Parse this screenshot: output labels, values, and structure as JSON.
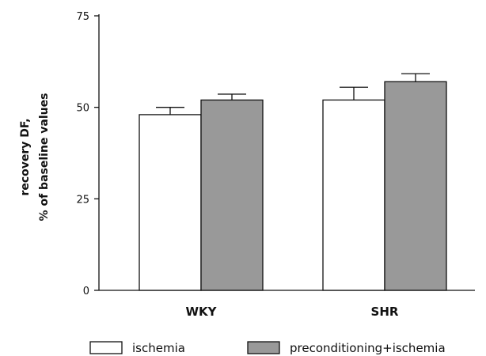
{
  "chart_data": {
    "type": "bar",
    "title": "",
    "xlabel": "",
    "ylabel_lines": [
      "recovery DF,",
      "% of baseline values"
    ],
    "ylim": [
      0,
      75
    ],
    "yticks": [
      0,
      25,
      50,
      75
    ],
    "categories": [
      "WKY",
      "SHR"
    ],
    "series": [
      {
        "name": "ischemia",
        "color": "#ffffff",
        "values": [
          48,
          52
        ],
        "errors": [
          2,
          3.5
        ]
      },
      {
        "name": "preconditioning+ischemia",
        "color": "#999999",
        "values": [
          52,
          57
        ],
        "errors": [
          1.6,
          2.2
        ]
      }
    ],
    "grid": false,
    "legend_position": "bottom"
  }
}
